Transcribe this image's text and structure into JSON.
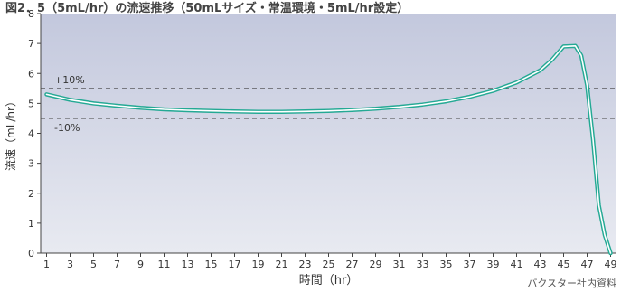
{
  "header": {
    "title": "図2．5（5mL/hr）の流速推移（50mLサイズ・常温環境・5mL/hr設定）"
  },
  "source_note": "バクスター社内資料",
  "colors": {
    "plot_top": "#c3c8dd",
    "plot_bottom": "#e8eaf1",
    "line_outer": "#24a994",
    "line_inner": "#ffffff",
    "ref_line": "#444444"
  },
  "chart_data": {
    "type": "line",
    "title": "",
    "xlabel": "時間（hr）",
    "ylabel": "流速（mL/hr）",
    "xlim": [
      0.5,
      49.5
    ],
    "ylim": [
      0,
      8
    ],
    "x_ticks": [
      1,
      3,
      5,
      7,
      9,
      11,
      13,
      15,
      17,
      19,
      21,
      23,
      25,
      27,
      29,
      31,
      33,
      35,
      37,
      39,
      41,
      43,
      45,
      47,
      49
    ],
    "y_ticks": [
      0,
      1,
      2,
      3,
      4,
      5,
      6,
      7,
      8
    ],
    "grid": false,
    "reference_lines": [
      {
        "y": 5.5,
        "label": "+10%",
        "style": "dashed"
      },
      {
        "y": 4.5,
        "label": "-10%",
        "style": "dashed"
      }
    ],
    "series": [
      {
        "x": [
          1,
          3,
          5,
          7,
          9,
          11,
          13,
          15,
          17,
          19,
          21,
          23,
          25,
          27,
          29,
          31,
          33,
          35,
          37,
          39,
          41,
          43,
          44,
          45,
          46,
          46.5,
          47,
          47.5,
          48,
          48.5,
          49
        ],
        "y": [
          5.3,
          5.12,
          5.0,
          4.92,
          4.85,
          4.8,
          4.77,
          4.75,
          4.73,
          4.72,
          4.72,
          4.73,
          4.75,
          4.78,
          4.82,
          4.88,
          4.96,
          5.07,
          5.22,
          5.42,
          5.7,
          6.1,
          6.45,
          6.9,
          6.92,
          6.6,
          5.6,
          3.8,
          1.6,
          0.6,
          0.0
        ]
      }
    ]
  }
}
